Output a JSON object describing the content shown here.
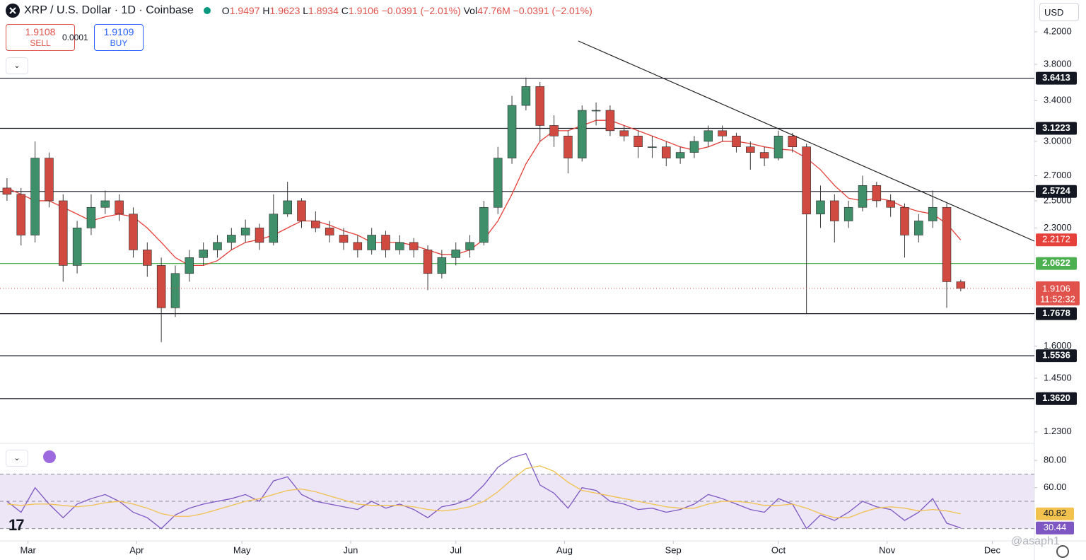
{
  "header": {
    "symbol": "XRP / U.S. Dollar · 1D · Coinbase",
    "o_label": "O",
    "h_label": "H",
    "l_label": "L",
    "c_label": "C",
    "change": "−0.0391 (−2.01%)",
    "vol_label": "Vol",
    "volume": "47.76M",
    "vol_change": "−0.0391 (−2.01%)"
  },
  "trade": {
    "sell_price": "1.9108",
    "sell": "SELL",
    "spread": "0.0001",
    "buy_price": "1.9109",
    "buy": "BUY"
  },
  "currency": "USD",
  "countdown": "11:52:32",
  "watermark": "@asaph1",
  "chart_data": [
    {
      "type": "candlestick",
      "log": true,
      "up_color": "#3f8f6a",
      "down_color": "#d04a42",
      "wick_color": "#3a3a3a",
      "x": [
        -6,
        -2,
        2,
        6,
        10,
        14,
        18,
        22,
        26,
        30,
        34,
        38,
        42,
        46,
        50,
        54,
        58,
        62,
        66,
        70,
        74,
        78,
        82,
        86,
        90,
        94,
        98,
        102,
        106,
        110,
        114,
        118,
        122,
        126,
        130,
        134,
        138,
        142,
        146,
        150,
        154,
        158,
        162,
        166,
        170,
        174,
        178,
        182,
        186,
        190,
        194,
        198,
        202,
        206,
        210,
        214,
        218,
        222,
        226,
        230,
        234,
        238,
        242,
        246,
        250,
        254,
        258,
        262,
        266
      ],
      "open": [
        2.6,
        2.55,
        2.25,
        2.85,
        2.5,
        2.05,
        2.3,
        2.45,
        2.5,
        2.4,
        2.15,
        2.05,
        1.8,
        2.0,
        2.1,
        2.15,
        2.2,
        2.25,
        2.3,
        2.2,
        2.4,
        2.5,
        2.35,
        2.3,
        2.25,
        2.2,
        2.15,
        2.25,
        2.15,
        2.2,
        2.15,
        2.0,
        2.1,
        2.15,
        2.2,
        2.45,
        2.85,
        3.35,
        3.55,
        3.15,
        3.05,
        2.85,
        3.3,
        3.3,
        3.1,
        3.05,
        2.95,
        2.95,
        2.85,
        2.9,
        3.0,
        3.1,
        3.05,
        2.95,
        2.9,
        2.85,
        3.05,
        2.95,
        2.4,
        2.5,
        2.35,
        2.45,
        2.62,
        2.5,
        2.45,
        2.25,
        2.35,
        2.45,
        1.9497
      ],
      "high": [
        2.68,
        2.6,
        3.0,
        2.9,
        2.55,
        2.35,
        2.55,
        2.58,
        2.55,
        2.45,
        2.2,
        2.1,
        2.05,
        2.15,
        2.2,
        2.25,
        2.3,
        2.36,
        2.33,
        2.55,
        2.65,
        2.52,
        2.42,
        2.35,
        2.3,
        2.25,
        2.3,
        2.28,
        2.25,
        2.23,
        2.18,
        2.15,
        2.2,
        2.25,
        2.5,
        2.95,
        3.45,
        3.65,
        3.6,
        3.25,
        3.1,
        3.35,
        3.38,
        3.35,
        3.15,
        3.1,
        3.05,
        3.0,
        2.95,
        3.05,
        3.15,
        3.15,
        3.08,
        3.0,
        2.95,
        3.1,
        3.08,
        2.98,
        2.62,
        2.55,
        2.5,
        2.7,
        2.65,
        2.55,
        2.48,
        2.4,
        2.58,
        2.48,
        1.9623
      ],
      "low": [
        2.5,
        2.18,
        2.2,
        2.45,
        1.95,
        2.0,
        2.25,
        2.4,
        2.35,
        2.1,
        1.98,
        1.62,
        1.75,
        1.95,
        2.05,
        2.1,
        2.15,
        2.2,
        2.15,
        2.18,
        2.38,
        2.3,
        2.27,
        2.2,
        2.15,
        2.1,
        2.12,
        2.1,
        2.12,
        2.1,
        1.9,
        1.97,
        2.05,
        2.1,
        2.18,
        2.4,
        2.8,
        3.3,
        3.0,
        2.95,
        2.72,
        2.82,
        3.15,
        3.05,
        3.0,
        2.85,
        2.85,
        2.78,
        2.8,
        2.85,
        2.95,
        3.0,
        2.9,
        2.75,
        2.78,
        2.83,
        2.9,
        1.77,
        2.3,
        2.2,
        2.3,
        2.42,
        2.45,
        2.38,
        2.1,
        2.2,
        2.3,
        1.8,
        1.8934
      ],
      "close": [
        2.55,
        2.25,
        2.85,
        2.5,
        2.05,
        2.3,
        2.45,
        2.5,
        2.4,
        2.15,
        2.05,
        1.8,
        2.0,
        2.1,
        2.15,
        2.2,
        2.25,
        2.3,
        2.2,
        2.4,
        2.5,
        2.35,
        2.3,
        2.25,
        2.2,
        2.15,
        2.25,
        2.15,
        2.2,
        2.15,
        2.0,
        2.1,
        2.15,
        2.2,
        2.45,
        2.85,
        3.35,
        3.55,
        3.15,
        3.05,
        2.85,
        3.3,
        3.3,
        3.1,
        3.05,
        2.95,
        2.95,
        2.85,
        2.9,
        3.0,
        3.1,
        3.05,
        2.95,
        2.9,
        2.85,
        3.05,
        2.95,
        2.4,
        2.5,
        2.35,
        2.45,
        2.62,
        2.5,
        2.45,
        2.25,
        2.35,
        2.45,
        1.95,
        1.9106
      ],
      "ma": {
        "color": "#e5403a",
        "values": [
          2.6,
          2.55,
          2.5,
          2.5,
          2.45,
          2.4,
          2.35,
          2.38,
          2.4,
          2.38,
          2.3,
          2.2,
          2.1,
          2.05,
          2.05,
          2.08,
          2.15,
          2.2,
          2.22,
          2.25,
          2.3,
          2.35,
          2.35,
          2.32,
          2.28,
          2.25,
          2.2,
          2.2,
          2.2,
          2.18,
          2.15,
          2.12,
          2.12,
          2.15,
          2.22,
          2.35,
          2.55,
          2.8,
          3.0,
          3.1,
          3.1,
          3.15,
          3.2,
          3.2,
          3.15,
          3.1,
          3.05,
          3.0,
          2.95,
          2.92,
          2.95,
          3.0,
          3.0,
          2.98,
          2.95,
          2.93,
          2.92,
          2.85,
          2.75,
          2.62,
          2.52,
          2.5,
          2.52,
          2.5,
          2.45,
          2.42,
          2.4,
          2.33,
          2.2172
        ]
      },
      "xlim": [
        -8,
        287
      ],
      "xticks": [
        {
          "value": 0,
          "label": "Mar"
        },
        {
          "value": 31,
          "label": "Apr"
        },
        {
          "value": 61,
          "label": "May"
        },
        {
          "value": 92,
          "label": "Jun"
        },
        {
          "value": 122,
          "label": "Jul"
        },
        {
          "value": 153,
          "label": "Aug"
        },
        {
          "value": 184,
          "label": "Sep"
        },
        {
          "value": 214,
          "label": "Oct"
        },
        {
          "value": 245,
          "label": "Nov"
        },
        {
          "value": 275,
          "label": "Dec"
        }
      ],
      "ylim": [
        1.19,
        4.63
      ],
      "yticks": [
        {
          "value": 4.2,
          "label": "4.2000"
        },
        {
          "value": 3.8,
          "label": "3.8000"
        },
        {
          "value": 3.4,
          "label": "3.4000"
        },
        {
          "value": 3.0,
          "label": "3.0000"
        },
        {
          "value": 2.7,
          "label": "2.7000"
        },
        {
          "value": 2.5,
          "label": "2.5000"
        },
        {
          "value": 2.3,
          "label": "2.3000"
        },
        {
          "value": 1.6,
          "label": "1.6000"
        },
        {
          "value": 1.45,
          "label": "1.4500"
        },
        {
          "value": 1.23,
          "label": "1.2300"
        }
      ],
      "levels": [
        3.6413,
        3.1223,
        2.5724,
        2.0622,
        1.7678,
        1.5536,
        {
          "value": 1.362,
          "label": "1.3620"
        }
      ],
      "level_colors": [
        "#131722",
        "#131722",
        "#131722",
        "#4caf50",
        "#131722",
        "#131722",
        "#131722"
      ],
      "price_color": "#e0524b"
    },
    {
      "type": "line",
      "xref": "chart_data.0.x",
      "series": [
        {
          "color": "#7e57c2",
          "values": [
            50,
            42,
            60,
            48,
            38,
            48,
            52,
            55,
            50,
            42,
            38,
            30,
            40,
            45,
            48,
            50,
            52,
            55,
            50,
            65,
            68,
            55,
            50,
            48,
            46,
            44,
            50,
            45,
            48,
            44,
            38,
            46,
            48,
            52,
            62,
            75,
            82,
            85,
            62,
            56,
            45,
            60,
            58,
            50,
            48,
            44,
            45,
            42,
            44,
            48,
            55,
            52,
            48,
            44,
            42,
            52,
            48,
            30,
            40,
            36,
            42,
            50,
            46,
            44,
            36,
            42,
            52,
            34,
            30.44
          ]
        },
        {
          "color": "#f2c14e",
          "values": [
            48,
            47,
            48,
            48,
            47,
            46,
            47,
            49,
            50,
            48,
            45,
            41,
            39,
            39,
            41,
            44,
            47,
            50,
            52,
            55,
            58,
            59,
            57,
            54,
            51,
            48,
            47,
            47,
            47,
            46,
            44,
            43,
            44,
            46,
            50,
            57,
            66,
            74,
            76,
            72,
            64,
            58,
            56,
            54,
            52,
            50,
            48,
            46,
            45,
            45,
            48,
            50,
            50,
            49,
            47,
            47,
            48,
            45,
            41,
            38,
            38,
            42,
            45,
            46,
            45,
            43,
            44,
            43,
            40.82
          ]
        }
      ],
      "ylim": [
        21,
        92
      ],
      "yticks": [
        {
          "value": 80,
          "label": "80.00"
        },
        {
          "value": 60,
          "label": "60.00"
        }
      ],
      "levels": [
        70,
        50,
        30
      ],
      "band_color": "#ece6f7"
    }
  ]
}
